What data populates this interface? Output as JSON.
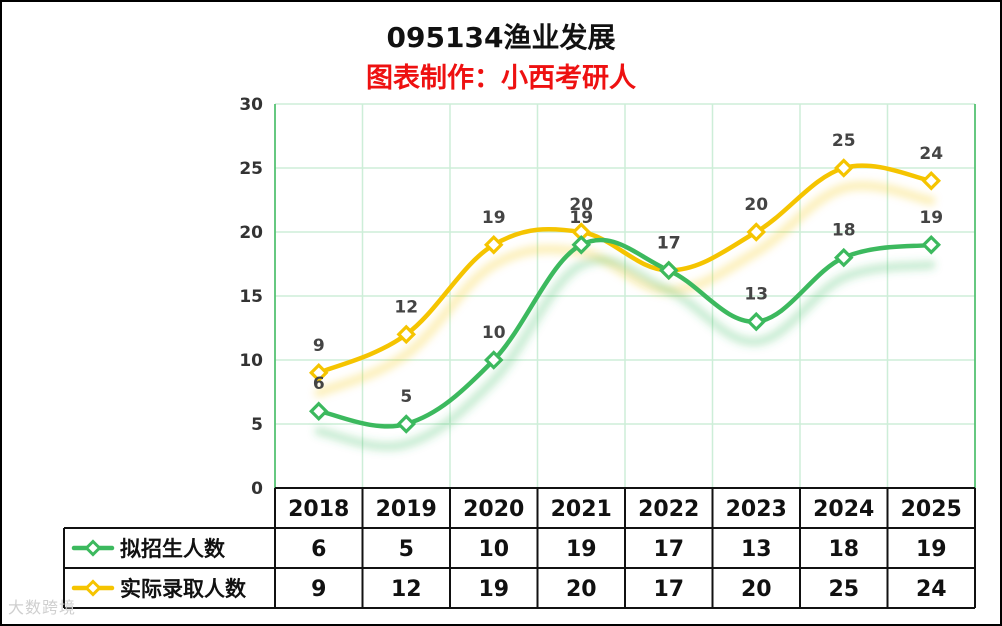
{
  "chart_data": {
    "type": "line",
    "title": "095134渔业发展",
    "subtitle": "图表制作：小西考研人",
    "categories": [
      "2018",
      "2019",
      "2020",
      "2021",
      "2022",
      "2023",
      "2024",
      "2025"
    ],
    "ylim": [
      0,
      30
    ],
    "yticks": [
      "0",
      "5",
      "10",
      "15",
      "20",
      "25",
      "30"
    ],
    "grid": true,
    "series": [
      {
        "name": "拟招生人数",
        "color": "#3cb95e",
        "values": [
          6,
          5,
          10,
          19,
          17,
          13,
          18,
          19
        ]
      },
      {
        "name": "实际录取人数",
        "color": "#f5c400",
        "values": [
          9,
          12,
          19,
          20,
          17,
          20,
          25,
          24
        ]
      }
    ],
    "table_values": [
      [
        "6",
        "5",
        "10",
        "19",
        "17",
        "13",
        "18",
        "19"
      ],
      [
        "9",
        "12",
        "19",
        "20",
        "17",
        "20",
        "25",
        "24"
      ]
    ]
  },
  "watermark": "大数跨境"
}
